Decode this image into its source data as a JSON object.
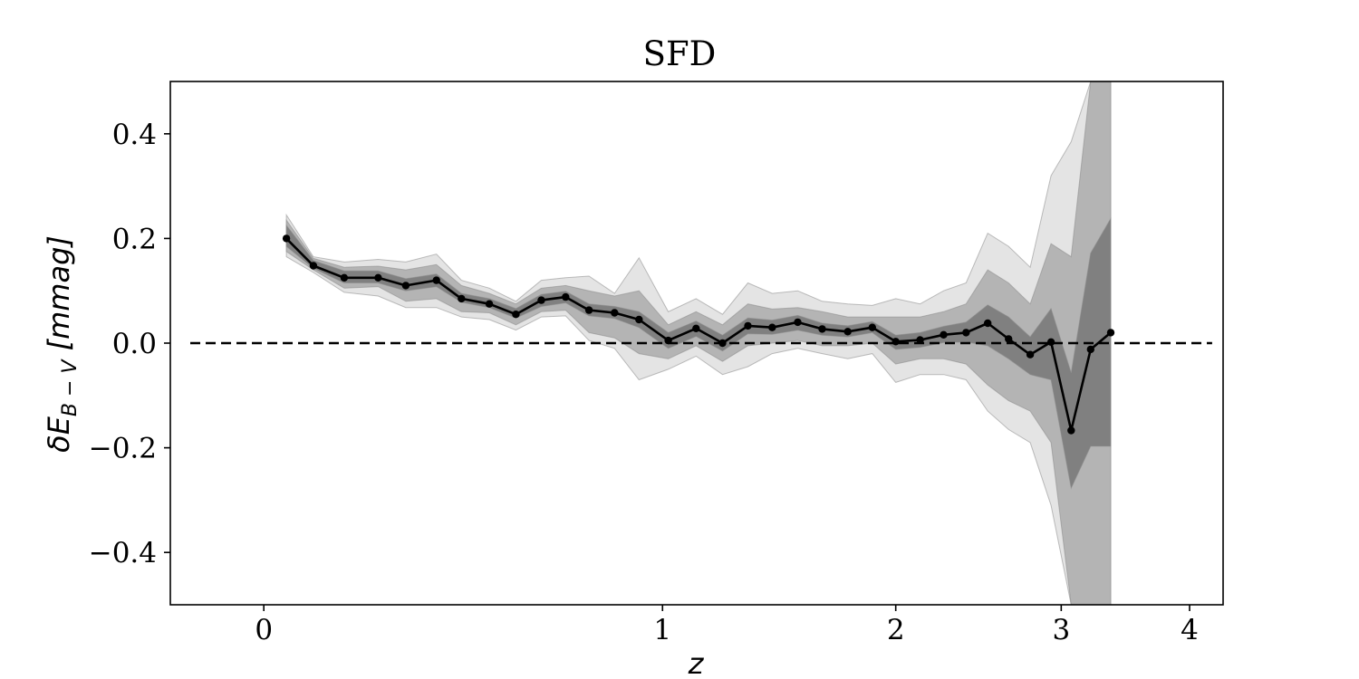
{
  "chart_data": {
    "type": "line",
    "title": "SFD",
    "xlabel": "z",
    "ylabel": {
      "prefix": "δE",
      "subscript": "B − V",
      "suffix": " [mmag]"
    },
    "xscale": "log(1+z)",
    "xlim": [
      -0.15,
      4.3
    ],
    "ylim": [
      -0.5,
      0.5
    ],
    "x_ticks": [
      0,
      1,
      2,
      3,
      4
    ],
    "x_tick_labels": [
      "0",
      "1",
      "2",
      "3",
      "4"
    ],
    "y_ticks": [
      -0.4,
      -0.2,
      0.0,
      0.2,
      0.4
    ],
    "y_tick_labels": [
      "−0.4",
      "−0.2",
      "0.0",
      "0.2",
      "0.4"
    ],
    "grid": false,
    "reference_line": {
      "y": 0,
      "x_start": -0.12,
      "x_end": 4.2,
      "style": "dashed",
      "color": "#000000"
    },
    "series": [
      {
        "x": [
          0.04,
          0.09,
          0.15,
          0.22,
          0.28,
          0.35,
          0.41,
          0.48,
          0.55,
          0.62,
          0.69,
          0.76,
          0.84,
          0.92,
          1.02,
          1.12,
          1.22,
          1.32,
          1.42,
          1.53,
          1.64,
          1.76,
          1.88,
          2.0,
          2.13,
          2.26,
          2.39,
          2.52,
          2.65,
          2.79,
          2.93,
          3.07,
          3.21,
          3.36,
          3.52,
          3.68,
          3.84,
          4.0
        ],
        "values": [
          0.2,
          0.148,
          0.125,
          0.125,
          0.11,
          0.12,
          0.085,
          0.075,
          0.055,
          0.082,
          0.088,
          0.063,
          0.058,
          0.045,
          0.005,
          0.028,
          0.0,
          0.033,
          0.03,
          0.04,
          0.027,
          0.022,
          0.03,
          0.003,
          0.006,
          0.016,
          0.02,
          0.038,
          0.008,
          -0.022,
          0.002,
          -0.167,
          -0.012,
          0.02,
          null,
          null,
          null,
          null
        ],
        "band_1sigma": {
          "upper": [
            0.225,
            0.158,
            0.138,
            0.138,
            0.123,
            0.132,
            0.095,
            0.085,
            0.066,
            0.093,
            0.099,
            0.075,
            0.07,
            0.06,
            0.02,
            0.042,
            0.015,
            0.048,
            0.044,
            0.053,
            0.038,
            0.033,
            0.041,
            0.015,
            0.02,
            0.032,
            0.04,
            0.073,
            0.05,
            0.012,
            0.066,
            -0.057,
            0.172,
            0.238,
            null,
            null,
            null,
            null
          ],
          "lower": [
            0.185,
            0.143,
            0.115,
            0.115,
            0.1,
            0.108,
            0.078,
            0.068,
            0.048,
            0.07,
            0.077,
            0.052,
            0.047,
            0.03,
            -0.01,
            0.013,
            -0.015,
            0.018,
            0.017,
            0.025,
            0.015,
            0.012,
            0.02,
            -0.012,
            -0.008,
            0.001,
            0.002,
            -0.005,
            -0.03,
            -0.06,
            -0.07,
            -0.277,
            -0.197,
            -0.197,
            null,
            null,
            null,
            null
          ]
        },
        "band_2sigma": {
          "upper": [
            0.235,
            0.162,
            0.145,
            0.147,
            0.14,
            0.15,
            0.11,
            0.095,
            0.075,
            0.105,
            0.11,
            0.1,
            0.09,
            0.1,
            0.035,
            0.06,
            0.035,
            0.075,
            0.065,
            0.068,
            0.06,
            0.05,
            0.05,
            0.05,
            0.05,
            0.06,
            0.075,
            0.14,
            0.115,
            0.075,
            0.19,
            0.165,
            0.5,
            0.5,
            null,
            null,
            null,
            null
          ],
          "lower": [
            0.175,
            0.14,
            0.105,
            0.108,
            0.08,
            0.085,
            0.06,
            0.058,
            0.035,
            0.06,
            0.063,
            0.02,
            0.01,
            -0.02,
            -0.03,
            -0.005,
            -0.035,
            -0.005,
            0.0,
            0.005,
            -0.005,
            -0.005,
            0.0,
            -0.04,
            -0.03,
            -0.03,
            -0.04,
            -0.08,
            -0.11,
            -0.13,
            -0.19,
            -0.5,
            -0.5,
            -0.5,
            null,
            null,
            null,
            null
          ]
        },
        "band_3sigma": {
          "upper": [
            0.245,
            0.165,
            0.155,
            0.16,
            0.155,
            0.17,
            0.12,
            0.105,
            0.08,
            0.12,
            0.125,
            0.128,
            0.095,
            0.163,
            0.06,
            0.085,
            0.055,
            0.115,
            0.095,
            0.1,
            0.08,
            0.075,
            0.072,
            0.085,
            0.075,
            0.1,
            0.115,
            0.21,
            0.185,
            0.145,
            0.32,
            0.385,
            0.5,
            0.5,
            null,
            null,
            null,
            null
          ],
          "lower": [
            0.165,
            0.135,
            0.097,
            0.09,
            0.068,
            0.068,
            0.05,
            0.045,
            0.025,
            0.05,
            0.052,
            0.005,
            -0.01,
            -0.07,
            -0.05,
            -0.025,
            -0.06,
            -0.045,
            -0.02,
            -0.01,
            -0.02,
            -0.03,
            -0.02,
            -0.075,
            -0.06,
            -0.06,
            -0.07,
            -0.13,
            -0.165,
            -0.19,
            -0.31,
            -0.5,
            -0.5,
            -0.5,
            null,
            null,
            null,
            null
          ]
        }
      }
    ],
    "colors": {
      "line": "#000000",
      "band_1sigma": "#808080",
      "band_2sigma": "#b4b4b4",
      "band_3sigma": "#e4e4e4"
    }
  }
}
